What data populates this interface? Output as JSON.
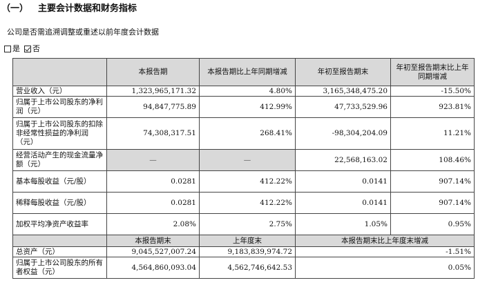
{
  "section": {
    "number": "（一）",
    "title": "主要会计数据和财务指标"
  },
  "question": "公司是否需追溯调整或重述以前年度会计数据",
  "options": [
    {
      "label": "是",
      "checked": false
    },
    {
      "label": "否",
      "checked": true
    }
  ],
  "table": {
    "headers": [
      "本报告期",
      "本报告期比上年同期增减",
      "年初至报告期末",
      "年初至报告期末比上年同期增减"
    ],
    "rows": [
      {
        "label": "营业收入（元）",
        "values": [
          "1,323,965,171.32",
          "4.80%",
          "3,165,348,475.20",
          "-15.50%"
        ]
      },
      {
        "label": "归属于上市公司股东的净利润（元）",
        "values": [
          "94,847,775.89",
          "412.99%",
          "47,733,529.96",
          "923.81%"
        ]
      },
      {
        "label": "归属于上市公司股东的扣除非经常性损益的净利润（元）",
        "values": [
          "74,308,317.51",
          "268.41%",
          "-98,304,204.09",
          "11.21%"
        ]
      },
      {
        "label": "经营活动产生的现金流量净额（元）",
        "values": [
          "—",
          "—",
          "22,568,163.02",
          "108.46%"
        ]
      },
      {
        "label": "基本每股收益（元/股）",
        "values": [
          "0.0281",
          "412.22%",
          "0.0141",
          "907.14%"
        ]
      },
      {
        "label": "稀释每股收益（元/股）",
        "values": [
          "0.0281",
          "412.22%",
          "0.0141",
          "907.14%"
        ]
      },
      {
        "label": "加权平均净资产收益率",
        "values": [
          "2.08%",
          "2.75%",
          "1.05%",
          "0.95%"
        ]
      }
    ],
    "headers2": [
      "本报告期末",
      "上年度末",
      "本报告期末比上年度末增减"
    ],
    "rows2": [
      {
        "label": "总资产（元）",
        "values": [
          "9,045,527,007.24",
          "9,183,839,974.72",
          "-1.51%"
        ]
      },
      {
        "label": "归属于上市公司股东的所有者权益（元）",
        "values": [
          "4,564,860,093.04",
          "4,562,746,642.53",
          "0.05%"
        ]
      }
    ]
  }
}
